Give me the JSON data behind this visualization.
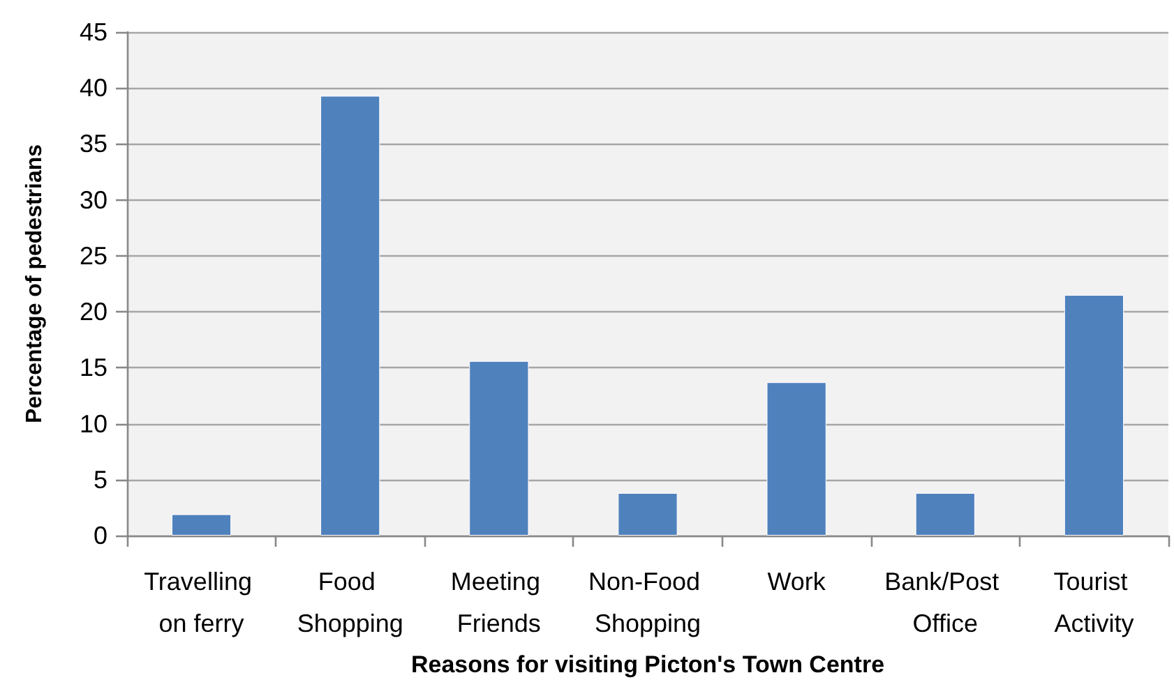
{
  "chart_data": {
    "type": "bar",
    "xlabel": "Reasons for visiting Picton's Town Centre",
    "ylabel": "Percentage of pedestrians",
    "categories": [
      "Travelling on ferry",
      "Food Shopping",
      "Meeting Friends",
      "Non-Food Shopping",
      "Work",
      "Bank/Post Office",
      "Tourist Activity"
    ],
    "values": [
      1.9,
      39.3,
      15.6,
      3.8,
      13.7,
      3.8,
      21.5
    ],
    "color": "#4f81bd",
    "ylim": [
      0,
      45
    ],
    "yticks": [
      0,
      5,
      10,
      15,
      20,
      25,
      30,
      35,
      40,
      45
    ],
    "grid": "y"
  }
}
